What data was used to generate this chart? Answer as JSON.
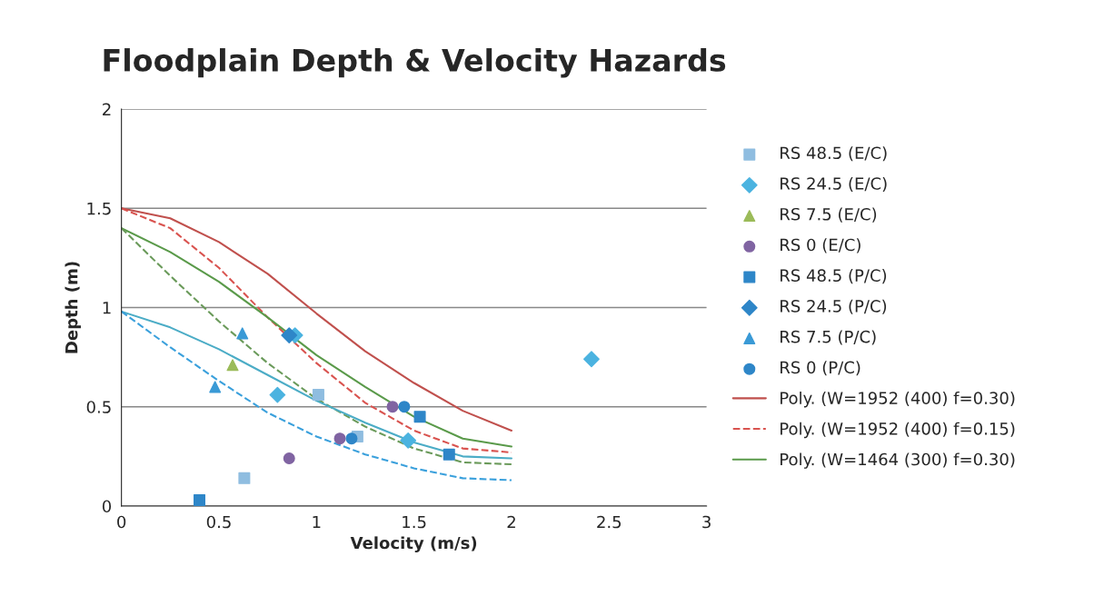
{
  "chart_data": {
    "type": "scatter",
    "title": "Floodplain Depth & Velocity Hazards",
    "xlabel": "Velocity (m/s)",
    "ylabel": "Depth (m)",
    "xlim": [
      0,
      3
    ],
    "xticks": [
      0,
      0.5,
      1,
      1.5,
      2,
      2.5,
      3
    ],
    "ylim": [
      0,
      2
    ],
    "yticks": [
      0,
      0.5,
      1,
      1.5,
      2
    ],
    "grid": "y",
    "legend": "right",
    "series": [
      {
        "name": "RS 48.5 (E/C)",
        "marker": "square",
        "color": "#8fbde0",
        "x": [
          1.01,
          1.21,
          0.63
        ],
        "values": [
          0.56,
          0.35,
          0.14
        ]
      },
      {
        "name": "RS 24.5 (E/C)",
        "marker": "diamond",
        "color": "#4bb3e0",
        "x": [
          0.8,
          1.47,
          2.41,
          0.89
        ],
        "values": [
          0.56,
          0.33,
          0.74,
          0.86
        ]
      },
      {
        "name": "RS 7.5 (E/C)",
        "marker": "triangle",
        "color": "#9bbb59",
        "x": [
          0.57
        ],
        "values": [
          0.71
        ]
      },
      {
        "name": "RS 0 (E/C)",
        "marker": "circle",
        "color": "#8064a2",
        "x": [
          0.86,
          1.12,
          1.39
        ],
        "values": [
          0.24,
          0.34,
          0.5
        ]
      },
      {
        "name": "RS 48.5 (P/C)",
        "marker": "square",
        "color": "#2e86c8",
        "x": [
          0.4,
          1.53,
          1.68
        ],
        "values": [
          0.03,
          0.45,
          0.26
        ]
      },
      {
        "name": "RS 24.5 (P/C)",
        "marker": "diamond",
        "color": "#2e86c8",
        "x": [
          0.86
        ],
        "values": [
          0.86
        ]
      },
      {
        "name": "RS 7.5 (P/C)",
        "marker": "triangle",
        "color": "#3a9ad6",
        "x": [
          0.48,
          0.62
        ],
        "values": [
          0.6,
          0.87
        ]
      },
      {
        "name": "RS 0 (P/C)",
        "marker": "circle",
        "color": "#2e86c8",
        "x": [
          1.18,
          1.45
        ],
        "values": [
          0.34,
          0.5
        ]
      },
      {
        "name": "Poly. (W=1952 (400) f=0.30)",
        "type": "line",
        "line_style": "solid",
        "color": "#c0504d",
        "x": [
          0,
          0.25,
          0.5,
          0.75,
          1,
          1.25,
          1.5,
          1.75,
          2
        ],
        "values": [
          1.5,
          1.45,
          1.33,
          1.17,
          0.97,
          0.78,
          0.62,
          0.48,
          0.38
        ]
      },
      {
        "name": "Poly. (W=1952 (400) f=0.15)",
        "type": "line",
        "line_style": "dashed",
        "color": "#d9534f",
        "x": [
          0,
          0.25,
          0.5,
          0.75,
          1,
          1.25,
          1.5,
          1.75,
          2
        ],
        "values": [
          1.5,
          1.4,
          1.2,
          0.95,
          0.72,
          0.52,
          0.38,
          0.29,
          0.27
        ]
      },
      {
        "name": "Poly. (W=1464 (300) f=0.30)",
        "type": "line",
        "line_style": "solid",
        "color": "#5a9a4a",
        "x": [
          0,
          0.25,
          0.5,
          0.75,
          1,
          1.25,
          1.5,
          1.75,
          2
        ],
        "values": [
          1.4,
          1.28,
          1.13,
          0.95,
          0.76,
          0.6,
          0.45,
          0.34,
          0.3
        ]
      },
      {
        "type": "line",
        "line_style": "dashed",
        "color": "#6a9a5a",
        "x": [
          0,
          0.25,
          0.5,
          0.75,
          1,
          1.25,
          1.5,
          1.75,
          2
        ],
        "values": [
          1.4,
          1.16,
          0.93,
          0.72,
          0.54,
          0.4,
          0.29,
          0.22,
          0.21
        ]
      },
      {
        "type": "line",
        "line_style": "solid",
        "color": "#4bacc6",
        "x": [
          0,
          0.25,
          0.5,
          0.75,
          1,
          1.25,
          1.5,
          1.75,
          2
        ],
        "values": [
          0.98,
          0.9,
          0.79,
          0.66,
          0.53,
          0.42,
          0.32,
          0.25,
          0.24
        ]
      },
      {
        "type": "line",
        "line_style": "dashed",
        "color": "#3aa0dc",
        "x": [
          0,
          0.25,
          0.5,
          0.75,
          1,
          1.25,
          1.5,
          1.75,
          2
        ],
        "values": [
          0.98,
          0.8,
          0.63,
          0.47,
          0.35,
          0.26,
          0.19,
          0.14,
          0.13
        ]
      }
    ]
  }
}
